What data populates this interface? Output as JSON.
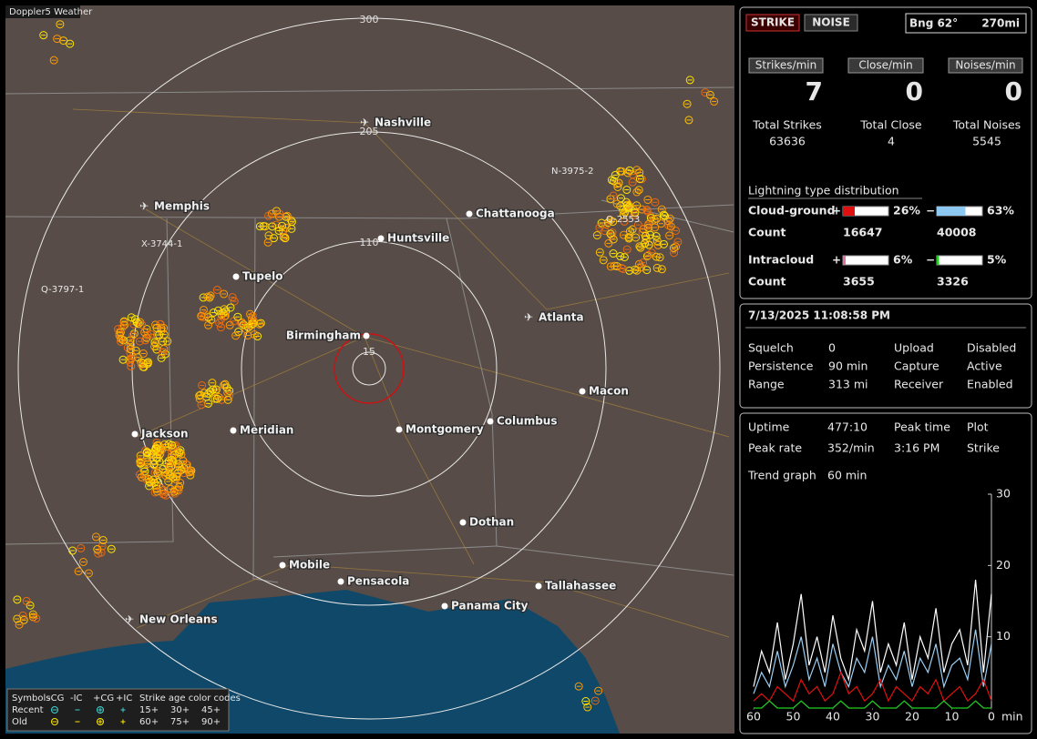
{
  "window_title": "Doppler5 Weather",
  "map": {
    "ring_labels": [
      "15",
      "110",
      "205",
      "300"
    ],
    "cities": [
      "Nashville",
      "Memphis",
      "Huntsville",
      "Chattanooga",
      "Tupelo",
      "Birmingham",
      "Atlanta",
      "Macon",
      "Jackson",
      "Meridian",
      "Montgomery",
      "Columbus",
      "Dothan",
      "Mobile",
      "Pensacola",
      "Tallahassee",
      "Panama City",
      "New Orleans"
    ],
    "storm_ids": [
      "N-3975-2",
      "Q-2553",
      "X-3744-1",
      "Q-3797-1"
    ]
  },
  "legend": {
    "title": "Symbols",
    "columns": [
      "-CG",
      "-IC",
      "+CG",
      "+IC"
    ],
    "age_title": "Strike age color codes",
    "rows": [
      {
        "label": "Recent",
        "ages": [
          "15+",
          "30+",
          "45+"
        ]
      },
      {
        "label": "Old",
        "ages": [
          "60+",
          "75+",
          "90+"
        ]
      }
    ]
  },
  "status": {
    "strike": "STRIKE",
    "noise": "NOISE",
    "bearing": "Bng 62°",
    "distance": "270mi"
  },
  "rates": [
    {
      "label": "Strikes/min",
      "value": 7
    },
    {
      "label": "Close/min",
      "value": 0
    },
    {
      "label": "Noises/min",
      "value": 0
    }
  ],
  "totals": [
    {
      "label": "Total Strikes",
      "value": 63636
    },
    {
      "label": "Total Close",
      "value": 4
    },
    {
      "label": "Total Noises",
      "value": 5545
    }
  ],
  "distribution": {
    "title": "Lightning type distribution",
    "count_label": "Count",
    "rows": [
      {
        "type": "Cloud-ground",
        "pos_sign": "+",
        "pos_pct": 26,
        "pos_label": "26%",
        "pos_color": "#e01010",
        "neg_sign": "−",
        "neg_pct": 63,
        "neg_label": "63%",
        "neg_color": "#8cc8f0",
        "pos_count": 16647,
        "neg_count": 40008
      },
      {
        "type": "Intracloud",
        "pos_sign": "+",
        "pos_pct": 6,
        "pos_label": "6%",
        "pos_color": "#e070a0",
        "neg_sign": "−",
        "neg_pct": 5,
        "neg_label": "5%",
        "neg_color": "#20d020",
        "pos_count": 3655,
        "neg_count": 3326
      }
    ]
  },
  "datetime": "7/13/2025 11:08:58 PM",
  "settings": [
    {
      "label": "Squelch",
      "value": "0",
      "label2": "Upload",
      "value2": "Disabled",
      "color2": "#aaaaaa"
    },
    {
      "label": "Persistence",
      "value": "90 min",
      "label2": "Capture",
      "value2": "Active",
      "color2": "#30e030"
    },
    {
      "label": "Range",
      "value": "313 mi",
      "label2": "Receiver",
      "value2": "Enabled",
      "color2": "#30e030"
    }
  ],
  "stats": [
    [
      "Uptime",
      "477:10",
      "Peak time",
      "Plot"
    ],
    [
      "Peak rate",
      "352/min",
      "3:16 PM",
      "Strike"
    ]
  ],
  "trend": {
    "title": "Trend graph",
    "span": "60 min",
    "x_unit": "min",
    "ylim": [
      0,
      30
    ],
    "yticks": [
      10,
      20,
      30
    ],
    "xlim": [
      60,
      0
    ],
    "xticks": [
      60,
      50,
      40,
      30,
      20,
      10,
      0
    ],
    "x": [
      60,
      58,
      56,
      54,
      52,
      50,
      48,
      46,
      44,
      42,
      40,
      38,
      36,
      34,
      32,
      30,
      28,
      26,
      24,
      22,
      20,
      18,
      16,
      14,
      12,
      10,
      8,
      6,
      4,
      2,
      0
    ],
    "series": [
      {
        "color": "#ffffff",
        "values": [
          3,
          8,
          5,
          12,
          4,
          9,
          16,
          6,
          10,
          5,
          13,
          7,
          4,
          11,
          8,
          15,
          5,
          9,
          6,
          12,
          4,
          10,
          7,
          14,
          5,
          9,
          11,
          6,
          18,
          5,
          16
        ]
      },
      {
        "color": "#9ccff5",
        "values": [
          2,
          5,
          3,
          8,
          3,
          6,
          10,
          4,
          7,
          3,
          9,
          5,
          3,
          7,
          5,
          10,
          3,
          6,
          4,
          8,
          3,
          7,
          5,
          9,
          3,
          6,
          7,
          4,
          11,
          3,
          9
        ]
      },
      {
        "color": "#e01010",
        "values": [
          1,
          2,
          1,
          3,
          2,
          1,
          4,
          2,
          3,
          1,
          2,
          5,
          2,
          3,
          1,
          2,
          4,
          1,
          3,
          2,
          1,
          3,
          2,
          4,
          1,
          2,
          3,
          1,
          2,
          4,
          1
        ]
      },
      {
        "color": "#20d020",
        "values": [
          0,
          0,
          1,
          0,
          0,
          0,
          1,
          0,
          0,
          0,
          0,
          1,
          0,
          0,
          0,
          1,
          0,
          0,
          0,
          1,
          0,
          0,
          0,
          0,
          1,
          0,
          0,
          0,
          1,
          0,
          0
        ]
      }
    ]
  }
}
